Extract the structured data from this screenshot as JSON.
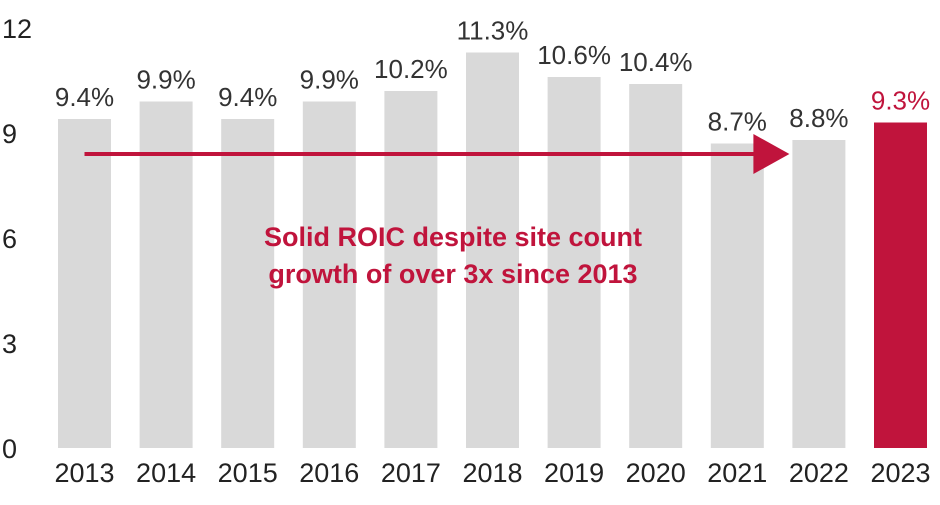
{
  "chart_data": {
    "type": "bar",
    "categories": [
      "2013",
      "2014",
      "2015",
      "2016",
      "2017",
      "2018",
      "2019",
      "2020",
      "2021",
      "2022",
      "2023"
    ],
    "values": [
      9.4,
      9.9,
      9.4,
      9.9,
      10.2,
      11.3,
      10.6,
      10.4,
      8.7,
      8.8,
      9.3
    ],
    "data_labels": [
      "9.4%",
      "9.9%",
      "9.4%",
      "9.9%",
      "10.2%",
      "11.3%",
      "10.6%",
      "10.4%",
      "8.7%",
      "8.8%",
      "9.3%"
    ],
    "highlight_index": 10,
    "title": "",
    "xlabel": "",
    "ylabel": "",
    "ylim": [
      0,
      12
    ],
    "yticks": [
      0,
      3,
      6,
      9,
      12
    ],
    "ytick_labels": [
      "0",
      "3",
      "6",
      "9",
      "12"
    ],
    "grid": false,
    "colors": {
      "bar": "#d9d9d9",
      "highlight": "#c0143c",
      "arrow": "#c0143c"
    },
    "annotation": {
      "lines": [
        "Solid ROIC despite site count",
        "growth of over 3x since 2013"
      ],
      "arrow": {
        "from_index": 0,
        "to_index": 9,
        "y_value": 8.4
      }
    }
  }
}
